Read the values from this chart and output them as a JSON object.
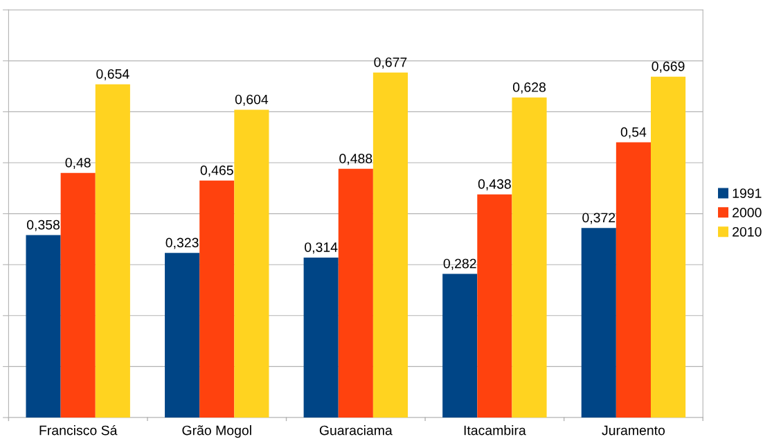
{
  "chart_data": {
    "type": "bar",
    "categories": [
      "Francisco Sá",
      "Grão Mogol",
      "Guaraciama",
      "Itacambira",
      "Juramento"
    ],
    "series": [
      {
        "name": "1991",
        "color": "#004586",
        "values": [
          0.358,
          0.323,
          0.314,
          0.282,
          0.372
        ],
        "value_labels": [
          "0,358",
          "0,323",
          "0,314",
          "0,282",
          "0,372"
        ]
      },
      {
        "name": "2000",
        "color": "#ff420e",
        "values": [
          0.48,
          0.465,
          0.488,
          0.438,
          0.54
        ],
        "value_labels": [
          "0,48",
          "0,465",
          "0,488",
          "0,438",
          "0,54"
        ]
      },
      {
        "name": "2010",
        "color": "#ffd320",
        "values": [
          0.654,
          0.604,
          0.677,
          0.628,
          0.669
        ],
        "value_labels": [
          "0,654",
          "0,604",
          "0,677",
          "0,628",
          "0,669"
        ]
      }
    ],
    "ylim": [
      0,
      0.8
    ],
    "yticks": [
      {
        "value": 0,
        "label": null
      },
      {
        "value": 0.1,
        "label": null
      },
      {
        "value": 0.2,
        "label": null
      },
      {
        "value": 0.3,
        "label": null
      },
      {
        "value": 0.4,
        "label": null
      },
      {
        "value": 0.5,
        "label": null
      },
      {
        "value": 0.6,
        "label": null
      },
      {
        "value": 0.7,
        "label": null
      },
      {
        "value": 0.8,
        "label": null
      }
    ],
    "tick_labels": "x",
    "grid": "y",
    "legend": "right"
  }
}
